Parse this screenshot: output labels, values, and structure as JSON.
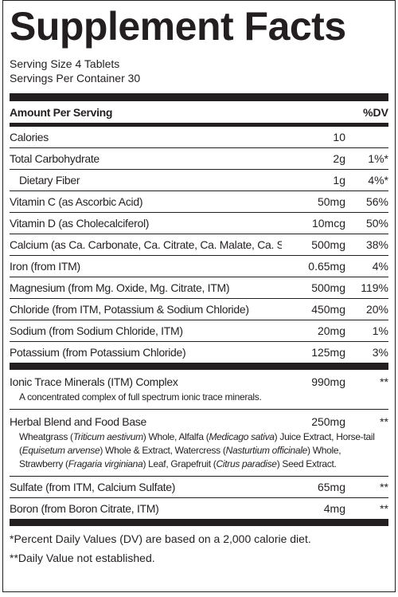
{
  "title": "Supplement Facts",
  "serving_size": "Serving Size 4 Tablets",
  "servings_per_container": "Servings Per Container 30",
  "header": {
    "amount": "Amount Per Serving",
    "dv": "%DV"
  },
  "rows": [
    {
      "name": "Calories",
      "amount": "10"
    },
    {
      "name": "Total Carbohydrate",
      "amount": "2g",
      "dv": "1%*"
    },
    {
      "name": "Dietary Fiber",
      "amount": "1g",
      "dv": "4%*"
    },
    {
      "name": "Vitamin C (as Ascorbic Acid)",
      "amount": "50mg",
      "dv": "56%"
    },
    {
      "name": "Vitamin D (as Cholecalciferol)",
      "amount": "10mcg",
      "dv": "50%"
    },
    {
      "name": "Calcium (as Ca. Carbonate, Ca. Citrate, Ca. Malate, Ca. Sulfate)",
      "amount": "500mg",
      "dv": "38%"
    },
    {
      "name": "Iron (from ITM)",
      "amount": "0.65mg",
      "dv": "4%"
    },
    {
      "name": "Magnesium (from Mg. Oxide, Mg. Citrate, ITM)",
      "amount": "500mg",
      "dv": "119%"
    },
    {
      "name": "Chloride (from ITM, Potassium & Sodium Chloride)",
      "amount": "450mg",
      "dv": "20%"
    },
    {
      "name": "Sodium (from Sodium Chloride, ITM)",
      "amount": "20mg",
      "dv": "1%"
    },
    {
      "name": "Potassium (from Potassium Chloride)",
      "amount": "125mg",
      "dv": "3%"
    }
  ],
  "complexes": [
    {
      "name": "Ionic Trace Minerals (ITM) Complex",
      "amount": "990mg",
      "dv": "**",
      "description": [
        "A concentrated complex of full spectrum ionic trace minerals."
      ]
    },
    {
      "name": "Herbal Blend and Food Base",
      "amount": "250mg",
      "dv": "**",
      "description": [
        "Wheatgrass (",
        "Triticum aestivum",
        ") Whole, Alfalfa (",
        "Medicago sativa",
        ") Juice Extract, Horse-tail (",
        "Equisetum arvense",
        ") Whole & Extract, Watercress (",
        "Nasturtium officinale",
        ") Whole, Strawberry (",
        "Fragaria virginiana",
        ") Leaf, Grapefruit (",
        "Citrus paradise",
        ") Seed Extract."
      ]
    }
  ],
  "rows2": [
    {
      "name": "Sulfate (from ITM, Calcium Sulfate)",
      "amount": "65mg",
      "dv": "**"
    },
    {
      "name": "Boron (from Boron Citrate, ITM)",
      "amount": "4mg",
      "dv": "**"
    }
  ],
  "footnotes": [
    "*Percent Daily Values (DV) are based on a 2,000 calorie diet.",
    "**Daily Value not established."
  ]
}
